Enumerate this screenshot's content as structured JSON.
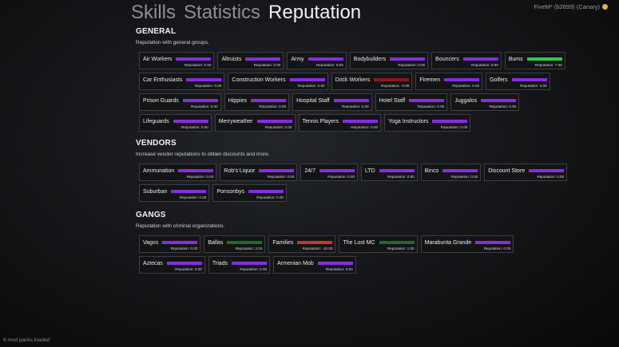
{
  "header": {
    "tabs": [
      {
        "label": "Skills",
        "active": false
      },
      {
        "label": "Statistics",
        "active": false
      },
      {
        "label": "Reputation",
        "active": true
      }
    ],
    "build": "FiveM* (b2699) (Canary)",
    "build_icon": "fivem-logo-icon"
  },
  "rep_label_prefix": "Reputation: ",
  "colors": {
    "neutral": "#8a2be2",
    "positive": "#2ecc40",
    "negative": "#c0392b",
    "slight_negative": "#8b1a1a",
    "gang_positive": "#1e6b2a"
  },
  "sections": [
    {
      "title": "GENERAL",
      "desc": "Reputation with general groups.",
      "items": [
        {
          "name": "Air Workers",
          "value": "0.00",
          "color": "#8a2be2"
        },
        {
          "name": "Altruists",
          "value": "0.00",
          "color": "#8a2be2"
        },
        {
          "name": "Army",
          "value": "0.00",
          "color": "#8a2be2"
        },
        {
          "name": "Bodybuilders",
          "value": "0.00",
          "color": "#8a2be2"
        },
        {
          "name": "Bouncers",
          "value": "0.00",
          "color": "#8a2be2"
        },
        {
          "name": "Bums",
          "value": "7.56",
          "color": "#2ecc40"
        },
        {
          "name": "Car Enthusiasts",
          "value": "0.00",
          "color": "#8a2be2"
        },
        {
          "name": "Construction Workers",
          "value": "0.00",
          "color": "#8a2be2"
        },
        {
          "name": "Dock Workers",
          "value": "-0.05",
          "color": "#8b1a1a"
        },
        {
          "name": "Firemen",
          "value": "0.00",
          "color": "#8a2be2"
        },
        {
          "name": "Golfers",
          "value": "0.00",
          "color": "#8a2be2"
        },
        {
          "name": "Prison Guards",
          "value": "0.00",
          "color": "#8a2be2"
        },
        {
          "name": "Hippies",
          "value": "0.00",
          "color": "#8a2be2"
        },
        {
          "name": "Hospital Staff",
          "value": "0.00",
          "color": "#8a2be2"
        },
        {
          "name": "Hotel Staff",
          "value": "0.00",
          "color": "#8a2be2"
        },
        {
          "name": "Juggalos",
          "value": "0.00",
          "color": "#8a2be2"
        },
        {
          "name": "Lifeguards",
          "value": "0.00",
          "color": "#8a2be2"
        },
        {
          "name": "Merryweather",
          "value": "0.00",
          "color": "#8a2be2"
        },
        {
          "name": "Tennis Players",
          "value": "0.00",
          "color": "#8a2be2"
        },
        {
          "name": "Yoga Instructors",
          "value": "0.00",
          "color": "#8a2be2"
        }
      ]
    },
    {
      "title": "VENDORS",
      "desc": "Increase vendor reputations to obtain discounts and more.",
      "items": [
        {
          "name": "Ammunation",
          "value": "0.00",
          "color": "#8a2be2"
        },
        {
          "name": "Rob's Liquor",
          "value": "0.00",
          "color": "#8a2be2"
        },
        {
          "name": "24/7",
          "value": "0.00",
          "color": "#8a2be2"
        },
        {
          "name": "LTD",
          "value": "0.00",
          "color": "#8a2be2"
        },
        {
          "name": "Binco",
          "value": "0.00",
          "color": "#8a2be2"
        },
        {
          "name": "Discount Store",
          "value": "0.00",
          "color": "#8a2be2"
        },
        {
          "name": "Suburban",
          "value": "0.00",
          "color": "#8a2be2"
        },
        {
          "name": "Ponsonbys",
          "value": "0.00",
          "color": "#8a2be2"
        }
      ]
    },
    {
      "title": "GANGS",
      "desc": "Reputation with criminal organizations.",
      "items": [
        {
          "name": "Vagos",
          "value": "0.00",
          "color": "#8a2be2"
        },
        {
          "name": "Ballas",
          "value": "2.00",
          "color": "#1e6b2a"
        },
        {
          "name": "Families",
          "value": "-10.00",
          "color": "#c0392b"
        },
        {
          "name": "The Lost MC",
          "value": "1.00",
          "color": "#1e6b2a"
        },
        {
          "name": "Marabunta Grande",
          "value": "0.00",
          "color": "#8a2be2"
        },
        {
          "name": "Aztecas",
          "value": "0.00",
          "color": "#8a2be2"
        },
        {
          "name": "Triads",
          "value": "0.00",
          "color": "#8a2be2"
        },
        {
          "name": "Armenian Mob",
          "value": "0.00",
          "color": "#8a2be2"
        }
      ]
    }
  ],
  "footer": "9 mod packs loaded"
}
